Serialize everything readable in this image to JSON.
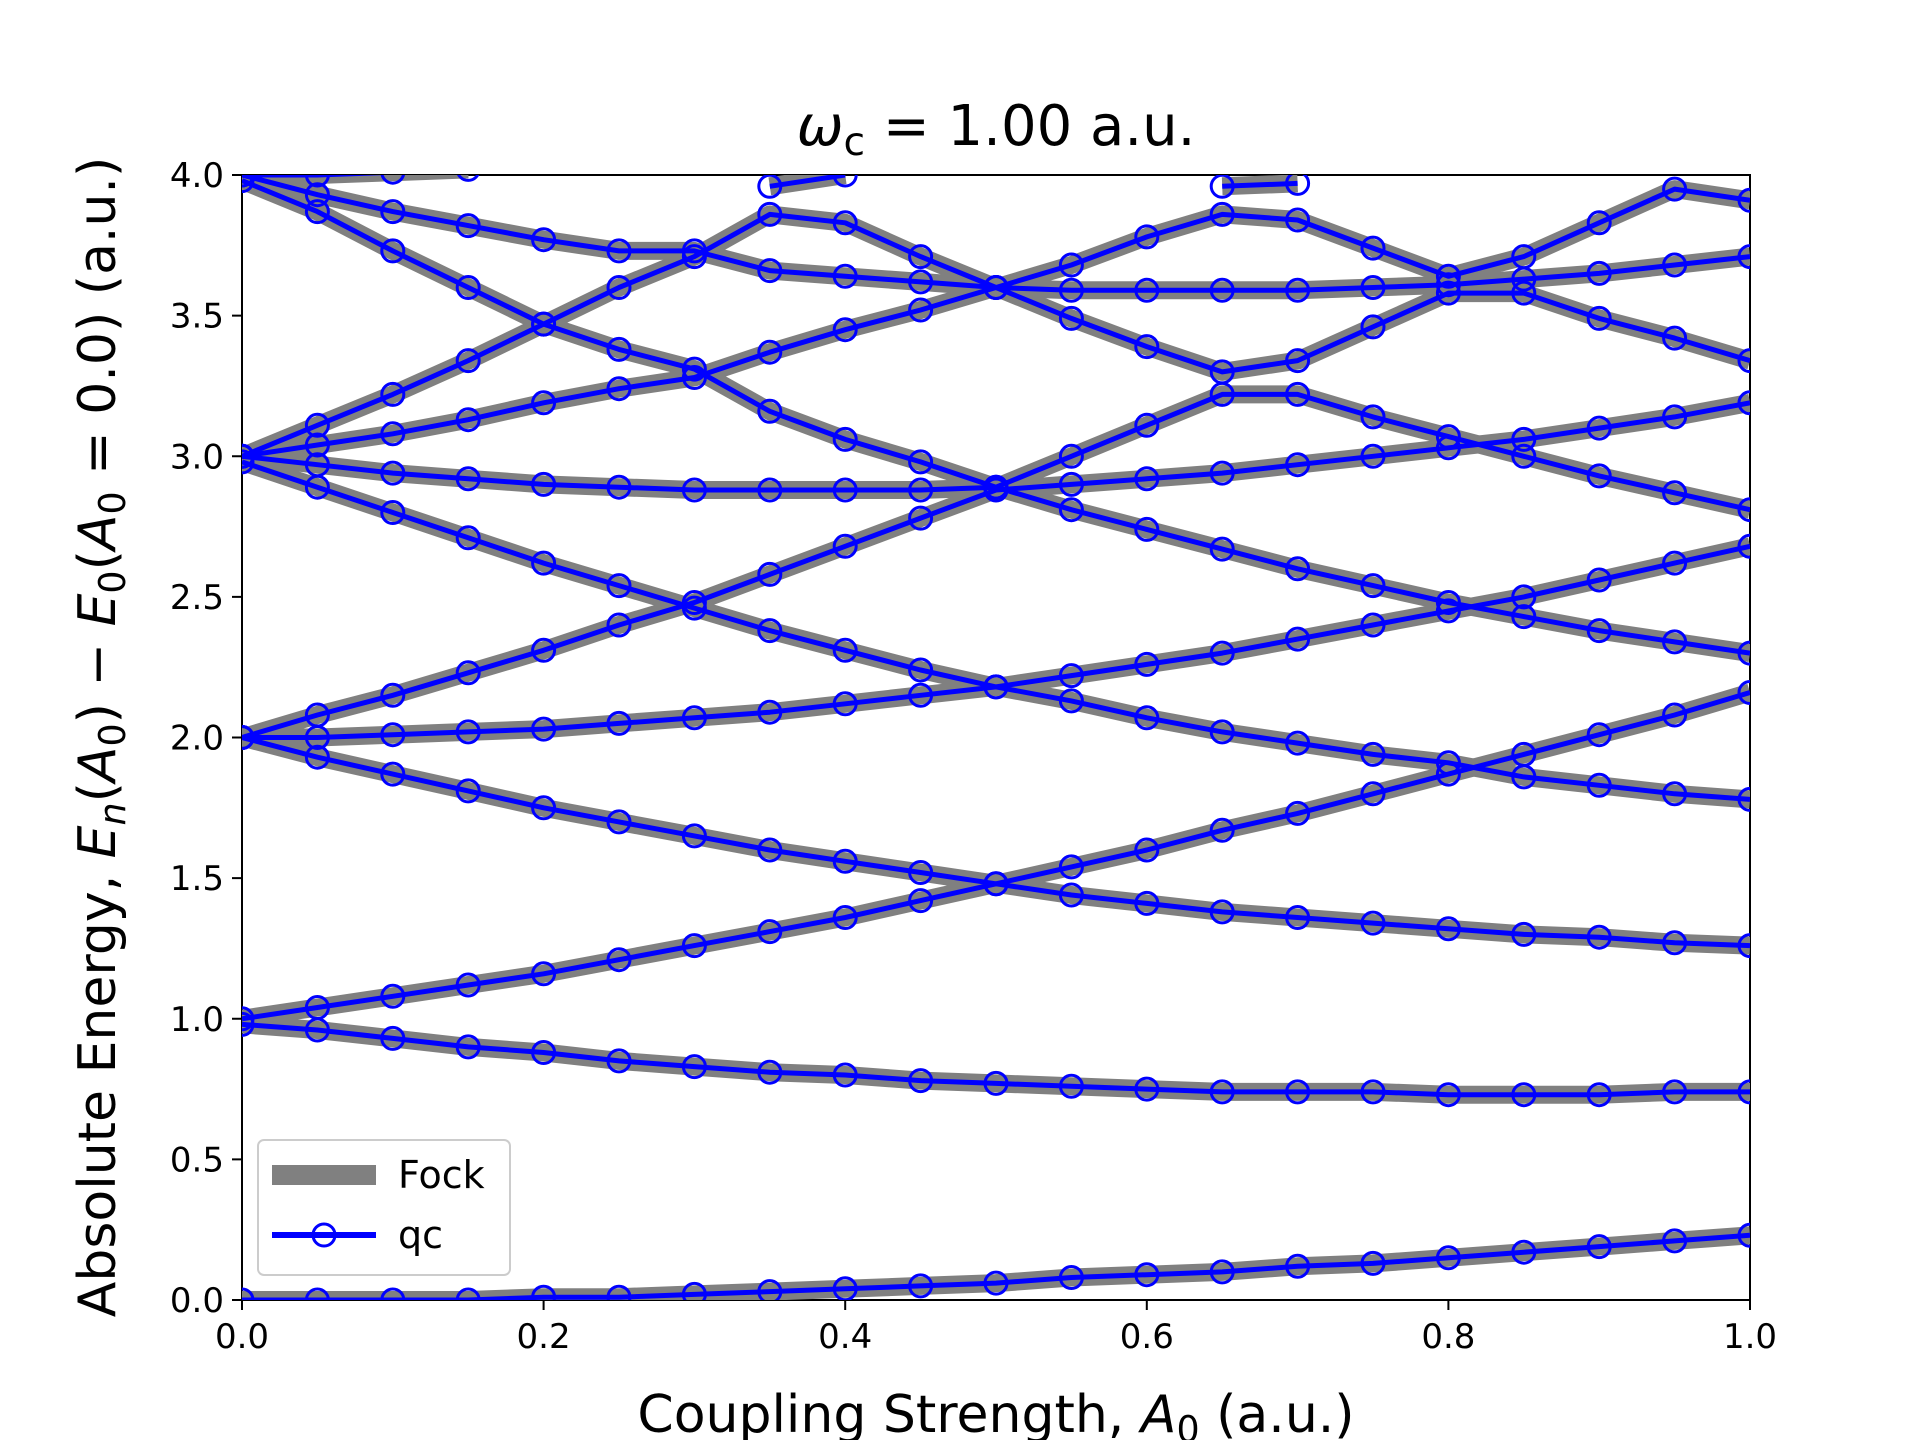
{
  "chart_data": {
    "type": "line",
    "title": "ω_c = 1.00 a.u.",
    "title_parts": {
      "symbol": "ω",
      "subscript": "c",
      "rest": " = 1.00 a.u."
    },
    "xlabel": "Coupling Strength, A_0 (a.u.)",
    "xlabel_parts": {
      "pre": "Coupling Strength, ",
      "symbol": "A",
      "subscript": "0",
      "post": " (a.u.)"
    },
    "ylabel": "Absolute Energy, E_n(A_0) − E_0(A_0 = 0.0) (a.u.)",
    "ylabel_parts": {
      "pre": "Absolute Energy, ",
      "e": "E",
      "n": "n",
      "a": "A",
      "zero": "0",
      "mid": " − ",
      "open": "(",
      "close": ")",
      "eq": " = 0.0)",
      "post": " (a.u.)"
    },
    "xlim": [
      0,
      1
    ],
    "ylim": [
      0,
      4
    ],
    "xticks": [
      "0.0",
      "0.2",
      "0.4",
      "0.6",
      "0.8",
      "1.0"
    ],
    "yticks": [
      "0.0",
      "0.5",
      "1.0",
      "1.5",
      "2.0",
      "2.5",
      "3.0",
      "3.5",
      "4.0"
    ],
    "grid": false,
    "legend_position": "lower-left",
    "legend": [
      {
        "label": "Fock",
        "color": "#808080",
        "style": "thick-line"
      },
      {
        "label": "qc",
        "color": "#0000ff",
        "style": "line-with-circle-markers"
      }
    ],
    "x": [
      0,
      0.05,
      0.1,
      0.15,
      0.2,
      0.25,
      0.3,
      0.35,
      0.4,
      0.45,
      0.5,
      0.55,
      0.6,
      0.65,
      0.7,
      0.75,
      0.8,
      0.85,
      0.9,
      0.95,
      1.0
    ],
    "series": [
      {
        "values": [
          0.0,
          0.0,
          0.0,
          0.0,
          0.01,
          0.01,
          0.02,
          0.03,
          0.04,
          0.05,
          0.06,
          0.08,
          0.09,
          0.1,
          0.12,
          0.13,
          0.15,
          0.17,
          0.19,
          0.21,
          0.23
        ]
      },
      {
        "values": [
          0.98,
          0.96,
          0.93,
          0.9,
          0.88,
          0.85,
          0.83,
          0.81,
          0.8,
          0.78,
          0.77,
          0.76,
          0.75,
          0.74,
          0.74,
          0.74,
          0.73,
          0.73,
          0.73,
          0.74,
          0.74
        ]
      },
      {
        "values": [
          1.0,
          1.04,
          1.08,
          1.12,
          1.16,
          1.21,
          1.26,
          1.31,
          1.36,
          1.42,
          1.48,
          1.54,
          1.6,
          1.67,
          1.73,
          1.8,
          1.87,
          1.94,
          2.01,
          2.08,
          2.16
        ]
      },
      {
        "values": [
          2.0,
          1.93,
          1.87,
          1.81,
          1.75,
          1.7,
          1.65,
          1.6,
          1.56,
          1.52,
          1.48,
          1.44,
          1.41,
          1.38,
          1.36,
          1.34,
          1.32,
          1.3,
          1.29,
          1.27,
          1.26
        ]
      },
      {
        "values": [
          2.0,
          2.0,
          2.01,
          2.02,
          2.03,
          2.05,
          2.07,
          2.09,
          2.12,
          2.15,
          2.18,
          2.22,
          2.26,
          2.3,
          2.35,
          2.4,
          2.45,
          2.5,
          2.56,
          2.62,
          2.68
        ]
      },
      {
        "values": [
          2.0,
          2.08,
          2.15,
          2.23,
          2.31,
          2.4,
          2.48,
          2.58,
          2.68,
          2.78,
          2.88,
          2.9,
          2.92,
          2.94,
          2.97,
          3.0,
          3.03,
          3.06,
          3.1,
          3.14,
          3.19
        ]
      },
      {
        "values": [
          2.98,
          2.89,
          2.8,
          2.71,
          2.62,
          2.54,
          2.46,
          2.38,
          2.31,
          2.24,
          2.18,
          2.13,
          2.07,
          2.02,
          1.98,
          1.94,
          1.91,
          1.86,
          1.83,
          1.8,
          1.78
        ]
      },
      {
        "values": [
          3.0,
          2.97,
          2.94,
          2.92,
          2.9,
          2.89,
          2.88,
          2.88,
          2.88,
          2.88,
          2.89,
          2.81,
          2.74,
          2.67,
          2.6,
          2.54,
          2.48,
          2.43,
          2.38,
          2.34,
          2.3
        ]
      },
      {
        "values": [
          3.0,
          3.04,
          3.08,
          3.13,
          3.19,
          3.24,
          3.28,
          3.37,
          3.45,
          3.52,
          3.6,
          3.59,
          3.59,
          3.59,
          3.59,
          3.6,
          3.61,
          3.63,
          3.65,
          3.68,
          3.71
        ]
      },
      {
        "values": [
          3.0,
          3.11,
          3.22,
          3.34,
          3.47,
          3.6,
          3.71,
          3.86,
          3.83,
          3.71,
          3.6,
          3.68,
          3.78,
          3.86,
          3.84,
          3.74,
          3.64,
          3.71,
          3.83,
          3.95,
          3.91
        ]
      },
      {
        "values": [
          3.98,
          3.87,
          3.73,
          3.6,
          3.47,
          3.38,
          3.31,
          3.16,
          3.06,
          2.98,
          2.89,
          3.0,
          3.11,
          3.22,
          3.22,
          3.14,
          3.07,
          3.0,
          2.93,
          2.87,
          2.81
        ]
      },
      {
        "values": [
          4.0,
          3.93,
          3.87,
          3.82,
          3.77,
          3.73,
          3.73,
          3.66,
          3.64,
          3.62,
          3.6,
          3.49,
          3.39,
          3.3,
          3.34,
          3.46,
          3.58,
          3.58,
          3.49,
          3.42,
          3.34
        ]
      },
      {
        "values": [
          4.0,
          4.0,
          4.01,
          4.02,
          null,
          null,
          null,
          3.96,
          4.0,
          null,
          null,
          null,
          null,
          3.96,
          3.97,
          null,
          null,
          null,
          null,
          null,
          null
        ]
      }
    ]
  }
}
